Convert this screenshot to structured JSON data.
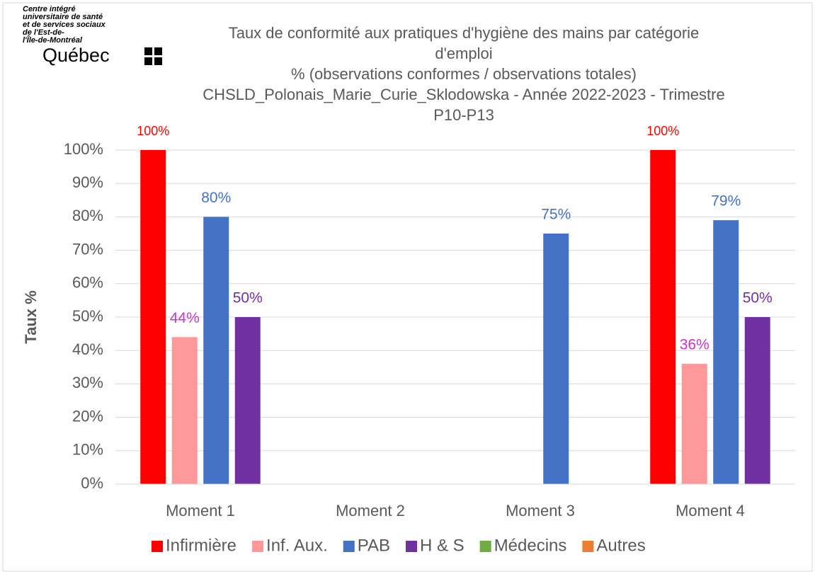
{
  "logo": {
    "lines": [
      "Centre intégré",
      "universitaire de santé",
      "et de services sociaux",
      "de l'Est-de-",
      "l'Île-de-Montréal"
    ],
    "brand": "Québec"
  },
  "chart_data": {
    "type": "bar",
    "title_lines": [
      "Taux de conformité aux pratiques d'hygiène des mains par catégorie",
      "d'emploi",
      "% (observations conformes / observations totales)",
      "CHSLD_Polonais_Marie_Curie_Sklodowska - Année 2022-2023 - Trimestre",
      "P10-P13"
    ],
    "y_label": "Taux %",
    "categories": [
      "Moment 1",
      "Moment 2",
      "Moment 3",
      "Moment 4"
    ],
    "series": [
      {
        "name": "Infirmière",
        "color": "#ff0000",
        "label_color": "#ff0000",
        "values": [
          100,
          null,
          null,
          100
        ],
        "value_labels": [
          "100%",
          null,
          null,
          "100%"
        ]
      },
      {
        "name": "Inf. Aux.",
        "color": "#ff9999",
        "label_color": "#cc33cc",
        "values": [
          44,
          null,
          null,
          36
        ],
        "value_labels": [
          "44%",
          null,
          null,
          "36%"
        ]
      },
      {
        "name": "PAB",
        "color": "#4472c4",
        "label_color": "#4472c4",
        "values": [
          80,
          null,
          75,
          79
        ],
        "value_labels": [
          "80%",
          null,
          "75%",
          "79%"
        ]
      },
      {
        "name": "H & S",
        "color": "#7030a0",
        "label_color": "#7030a0",
        "values": [
          50,
          null,
          null,
          50
        ],
        "value_labels": [
          "50%",
          null,
          null,
          "50%"
        ]
      },
      {
        "name": "Médecins",
        "color": "#70ad47",
        "label_color": "#70ad47",
        "values": [
          null,
          null,
          null,
          null
        ],
        "value_labels": [
          null,
          null,
          null,
          null
        ]
      },
      {
        "name": "Autres",
        "color": "#ed7d31",
        "label_color": "#ed7d31",
        "values": [
          null,
          null,
          null,
          null
        ],
        "value_labels": [
          null,
          null,
          null,
          null
        ]
      }
    ],
    "ylim": [
      0,
      100
    ],
    "yticks": [
      {
        "value": 0,
        "label": "0%"
      },
      {
        "value": 10,
        "label": "10%"
      },
      {
        "value": 20,
        "label": "20%"
      },
      {
        "value": 30,
        "label": "30%"
      },
      {
        "value": 40,
        "label": "40%"
      },
      {
        "value": 50,
        "label": "50%"
      },
      {
        "value": 60,
        "label": "60%"
      },
      {
        "value": 70,
        "label": "70%"
      },
      {
        "value": 80,
        "label": "80%"
      },
      {
        "value": 90,
        "label": "90%"
      },
      {
        "value": 100,
        "label": "100%"
      }
    ],
    "grid": true,
    "legend": "bottom"
  }
}
